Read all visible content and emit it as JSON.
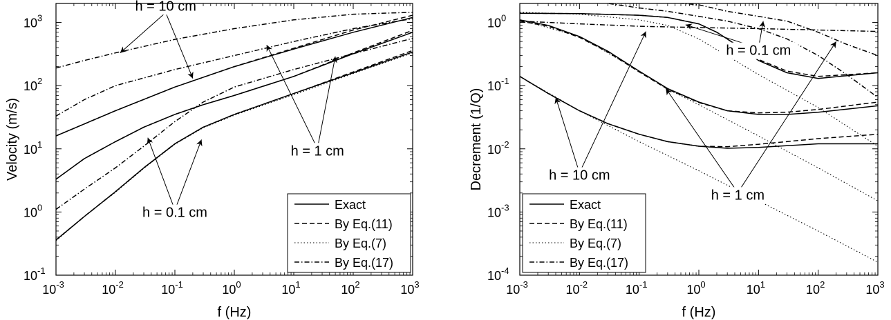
{
  "chart_data": [
    {
      "type": "line",
      "xscale": "log",
      "yscale": "log",
      "xlim": [
        0.001,
        1000
      ],
      "ylim": [
        0.1,
        2000
      ],
      "xlabel": "f (Hz)",
      "ylabel": "Velocity (m/s)",
      "xticks": [
        {
          "value": 0.001,
          "base": "10",
          "exp": "-3"
        },
        {
          "value": 0.01,
          "base": "10",
          "exp": "-2"
        },
        {
          "value": 0.1,
          "base": "10",
          "exp": "-1"
        },
        {
          "value": 1,
          "base": "10",
          "exp": "0"
        },
        {
          "value": 10,
          "base": "10",
          "exp": "1"
        },
        {
          "value": 100,
          "base": "10",
          "exp": "2"
        },
        {
          "value": 1000,
          "base": "10",
          "exp": "3"
        }
      ],
      "yticks": [
        {
          "value": 0.1,
          "base": "10",
          "exp": "-1"
        },
        {
          "value": 1,
          "base": "10",
          "exp": "0"
        },
        {
          "value": 10,
          "base": "10",
          "exp": "1"
        },
        {
          "value": 100,
          "base": "10",
          "exp": "2"
        },
        {
          "value": 1000,
          "base": "10",
          "exp": "3"
        }
      ],
      "legend": {
        "placement": "bottom-right",
        "entries": [
          {
            "label": "Exact",
            "style": "solid"
          },
          {
            "label": "By Eq.(11)",
            "style": "dashed"
          },
          {
            "label": "By Eq.(7)",
            "style": "dotted"
          },
          {
            "label": "By Eq.(17)",
            "style": "dashdot"
          }
        ]
      },
      "series": [
        {
          "style": "solid",
          "x": [
            0.001,
            0.01,
            0.1,
            1,
            10,
            100,
            1000
          ],
          "y": [
            16,
            40,
            95,
            200,
            380,
            700,
            1200
          ]
        },
        {
          "style": "dashed",
          "x": [
            0.001,
            0.01,
            0.1,
            1,
            10,
            100,
            1000
          ],
          "y": [
            16,
            40,
            95,
            200,
            390,
            760,
            1300
          ]
        },
        {
          "style": "solid",
          "x": [
            0.001,
            0.003,
            0.01,
            0.03,
            0.1,
            0.3,
            1,
            10,
            100,
            1000
          ],
          "y": [
            3.3,
            7,
            13,
            22,
            35,
            50,
            70,
            140,
            320,
            700
          ]
        },
        {
          "style": "dashed",
          "x": [
            0.001,
            0.003,
            0.01,
            0.03,
            0.1,
            0.3,
            1,
            10,
            100,
            1000
          ],
          "y": [
            3.3,
            7,
            13,
            22,
            35,
            50,
            70,
            140,
            330,
            750
          ]
        },
        {
          "style": "solid",
          "x": [
            0.001,
            0.003,
            0.01,
            0.03,
            0.1,
            0.3,
            1,
            10,
            100,
            1000
          ],
          "y": [
            0.36,
            0.85,
            2.1,
            5,
            12,
            22,
            35,
            75,
            160,
            340
          ]
        },
        {
          "style": "dashed",
          "x": [
            0.001,
            0.003,
            0.01,
            0.03,
            0.1,
            0.3,
            1,
            10,
            100,
            1000
          ],
          "y": [
            0.36,
            0.85,
            2.1,
            5,
            12,
            22,
            35,
            75,
            165,
            360
          ]
        },
        {
          "style": "dotted",
          "x": [
            0.001,
            0.003,
            0.01,
            0.03,
            0.1,
            0.3,
            1,
            10,
            100,
            1000
          ],
          "y": [
            0.35,
            0.85,
            2.05,
            4.9,
            11.8,
            21.5,
            34,
            72,
            155,
            330
          ]
        },
        {
          "style": "dashdot",
          "x": [
            0.001,
            0.003,
            0.01,
            0.1,
            1,
            10,
            100,
            1000
          ],
          "y": [
            190,
            250,
            330,
            540,
            800,
            1100,
            1350,
            1450
          ]
        },
        {
          "style": "dashdot",
          "x": [
            0.001,
            0.003,
            0.01,
            0.1,
            1,
            10,
            100,
            1000
          ],
          "y": [
            33,
            60,
            100,
            180,
            300,
            500,
            800,
            1150
          ]
        },
        {
          "style": "dashdot",
          "x": [
            0.001,
            0.003,
            0.01,
            0.03,
            0.1,
            0.3,
            1,
            10,
            100,
            1000
          ],
          "y": [
            1.1,
            2.3,
            5,
            11,
            27,
            55,
            95,
            180,
            320,
            560
          ]
        }
      ],
      "annotations": [
        {
          "text": "h = 10 cm",
          "at": [
            0.07,
            1200
          ],
          "arrows": [
            [
              0.012,
              330
            ],
            [
              0.2,
              130
            ]
          ]
        },
        {
          "text": "h = 1 cm",
          "at": [
            25,
            8.5
          ],
          "arrows": [
            [
              3.5,
              440
            ],
            [
              50,
              290
            ]
          ]
        },
        {
          "text": "h = 0.1 cm",
          "at": [
            0.1,
            0.9
          ],
          "arrows": [
            [
              0.035,
              15
            ],
            [
              0.28,
              14
            ]
          ]
        }
      ]
    },
    {
      "type": "line",
      "xscale": "log",
      "yscale": "log",
      "xlim": [
        0.001,
        1000
      ],
      "ylim": [
        0.0001,
        2
      ],
      "xlabel": "f (Hz)",
      "ylabel": "Decrement (1/Q)",
      "xticks": [
        {
          "value": 0.001,
          "base": "10",
          "exp": "-3"
        },
        {
          "value": 0.01,
          "base": "10",
          "exp": "-2"
        },
        {
          "value": 0.1,
          "base": "10",
          "exp": "-1"
        },
        {
          "value": 1,
          "base": "10",
          "exp": "0"
        },
        {
          "value": 10,
          "base": "10",
          "exp": "1"
        },
        {
          "value": 100,
          "base": "10",
          "exp": "2"
        },
        {
          "value": 1000,
          "base": "10",
          "exp": "3"
        }
      ],
      "yticks": [
        {
          "value": 0.0001,
          "base": "10",
          "exp": "-4"
        },
        {
          "value": 0.001,
          "base": "10",
          "exp": "-3"
        },
        {
          "value": 0.01,
          "base": "10",
          "exp": "-2"
        },
        {
          "value": 0.1,
          "base": "10",
          "exp": "-1"
        },
        {
          "value": 1,
          "base": "10",
          "exp": "0"
        }
      ],
      "legend": {
        "placement": "bottom-left",
        "entries": [
          {
            "label": "Exact",
            "style": "solid"
          },
          {
            "label": "By Eq.(11)",
            "style": "dashed"
          },
          {
            "label": "By Eq.(7)",
            "style": "dotted"
          },
          {
            "label": "By Eq.(17)",
            "style": "dashdot"
          }
        ]
      },
      "series": [
        {
          "style": "solid",
          "x": [
            0.001,
            0.01,
            0.1,
            0.3,
            1,
            2,
            5,
            10,
            30,
            100,
            1000
          ],
          "y": [
            1.4,
            1.38,
            1.3,
            1.2,
            0.95,
            0.7,
            0.4,
            0.25,
            0.16,
            0.13,
            0.16
          ]
        },
        {
          "style": "dashed",
          "x": [
            0.001,
            0.01,
            0.1,
            0.3,
            1,
            2,
            5,
            10,
            30,
            100,
            1000
          ],
          "y": [
            1.4,
            1.38,
            1.3,
            1.2,
            0.95,
            0.7,
            0.4,
            0.26,
            0.17,
            0.14,
            0.16
          ]
        },
        {
          "style": "solid",
          "x": [
            0.001,
            0.003,
            0.01,
            0.03,
            0.1,
            0.3,
            1,
            3,
            10,
            30,
            100,
            1000
          ],
          "y": [
            1.1,
            0.9,
            0.6,
            0.35,
            0.17,
            0.09,
            0.055,
            0.04,
            0.035,
            0.035,
            0.038,
            0.048
          ]
        },
        {
          "style": "dashed",
          "x": [
            0.001,
            0.003,
            0.01,
            0.03,
            0.1,
            0.3,
            1,
            3,
            10,
            30,
            100,
            1000
          ],
          "y": [
            1.05,
            0.87,
            0.58,
            0.34,
            0.165,
            0.088,
            0.054,
            0.04,
            0.037,
            0.038,
            0.042,
            0.055
          ]
        },
        {
          "style": "solid",
          "x": [
            0.001,
            0.003,
            0.01,
            0.03,
            0.1,
            0.3,
            1,
            3,
            10,
            100,
            1000
          ],
          "y": [
            0.14,
            0.075,
            0.04,
            0.025,
            0.017,
            0.013,
            0.011,
            0.0102,
            0.0105,
            0.012,
            0.012
          ]
        },
        {
          "style": "dashed",
          "x": [
            0.001,
            0.003,
            0.01,
            0.03,
            0.1,
            0.3,
            1,
            3,
            10,
            100,
            1000
          ],
          "y": [
            0.14,
            0.075,
            0.04,
            0.025,
            0.017,
            0.013,
            0.011,
            0.0108,
            0.0118,
            0.0145,
            0.017
          ]
        },
        {
          "style": "dotted",
          "x": [
            0.001,
            0.01,
            0.1,
            0.3,
            1,
            10,
            100,
            1000
          ],
          "y": [
            1.45,
            1.35,
            1.1,
            0.9,
            0.55,
            0.15,
            0.045,
            0.011
          ]
        },
        {
          "style": "dotted",
          "x": [
            0.001,
            0.01,
            0.1,
            0.3,
            1,
            10,
            100,
            1000
          ],
          "y": [
            1.1,
            0.6,
            0.17,
            0.088,
            0.05,
            0.016,
            0.005,
            0.0015
          ]
        },
        {
          "style": "dotted",
          "x": [
            0.001,
            0.01,
            0.1,
            1,
            10,
            100,
            1000
          ],
          "y": [
            0.14,
            0.04,
            0.013,
            0.0045,
            0.0015,
            0.0005,
            0.00016
          ]
        },
        {
          "style": "dashdot",
          "x": [
            0.01,
            0.03,
            0.1,
            0.3,
            1,
            3,
            10,
            30,
            100,
            300,
            1000
          ],
          "y": [
            2.5,
            2.0,
            1.7,
            1.5,
            1.25,
            1.05,
            0.8,
            0.55,
            0.3,
            0.15,
            0.065
          ]
        },
        {
          "style": "dashdot",
          "x": [
            0.1,
            0.3,
            1,
            3,
            10,
            30,
            100,
            300,
            1000
          ],
          "y": [
            2.5,
            2.1,
            1.9,
            1.5,
            1.25,
            1.05,
            0.7,
            0.45,
            0.3
          ]
        },
        {
          "style": "dashdot",
          "x": [
            0.001,
            0.01,
            0.1,
            1,
            10,
            100,
            1000
          ],
          "y": [
            1.05,
            0.95,
            0.87,
            0.83,
            0.8,
            0.76,
            0.72
          ]
        }
      ],
      "annotations": [
        {
          "text": "h = 0.1 cm",
          "at": [
            10,
            0.33
          ],
          "arrows": [
            [
              0.6,
              0.92
            ],
            [
              12,
              1.05
            ]
          ]
        },
        {
          "text": "h = 10 cm",
          "at": [
            0.01,
            0.0035
          ],
          "arrows": [
            [
              0.004,
              0.065
            ],
            [
              0.13,
              0.72
            ]
          ]
        },
        {
          "text": "h = 1 cm",
          "at": [
            4.5,
            0.0017
          ],
          "arrows": [
            [
              0.28,
              0.09
            ],
            [
              200,
              0.5
            ]
          ]
        }
      ]
    }
  ]
}
